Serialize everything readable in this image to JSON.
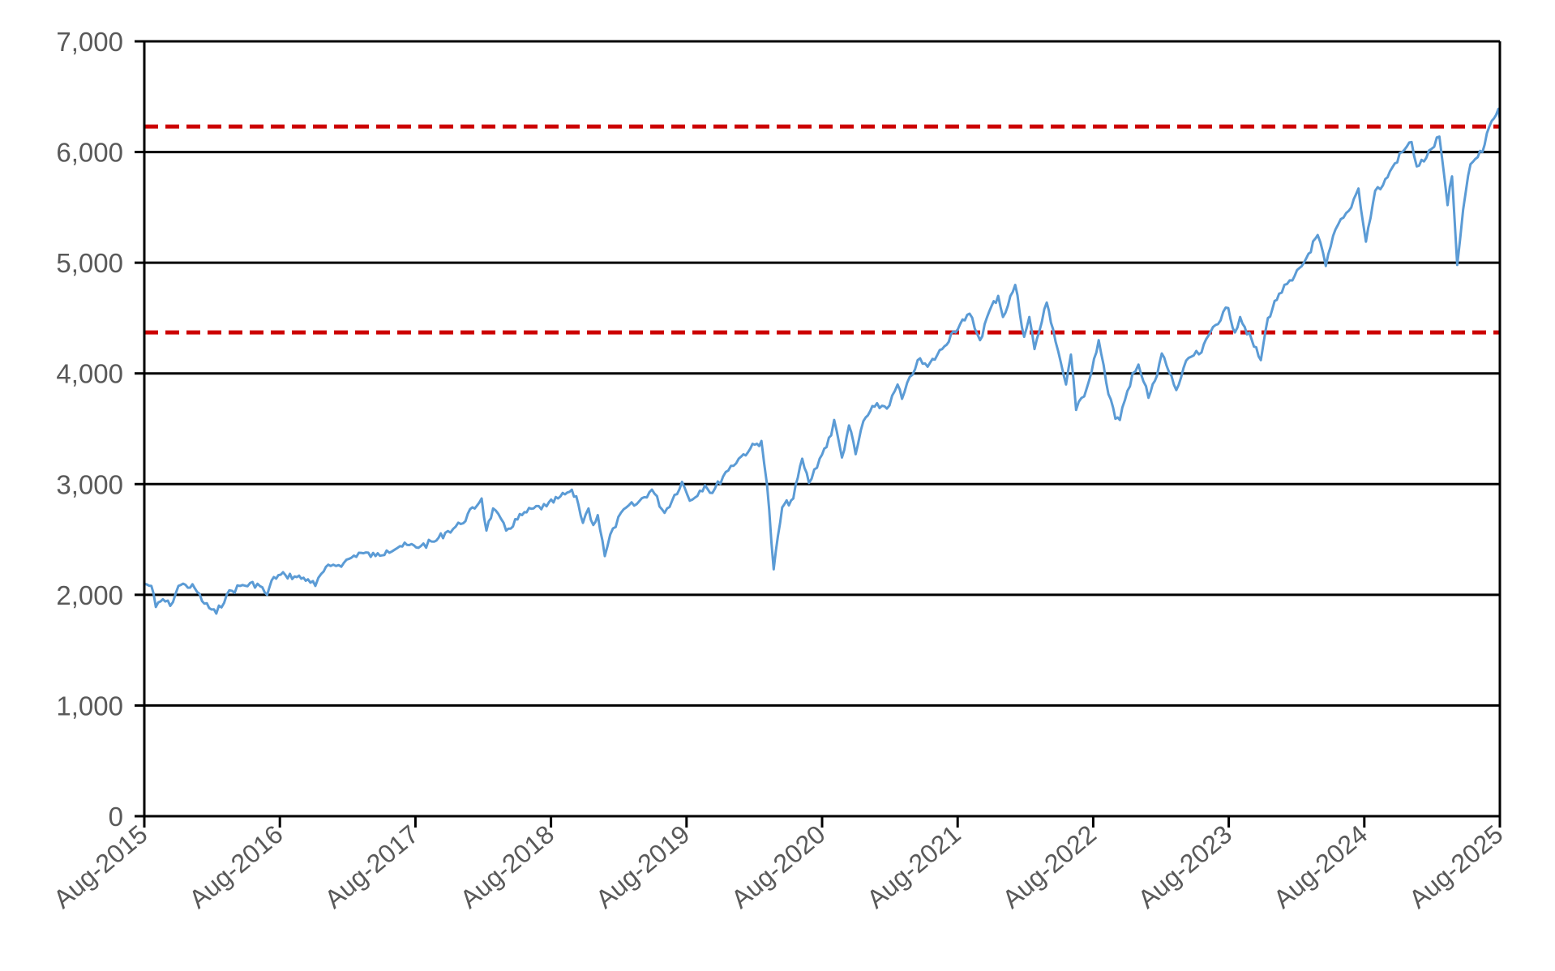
{
  "chart_data": {
    "type": "line",
    "title": "",
    "xlabel": "",
    "ylabel": "",
    "xlim": [
      "2015-08-01",
      "2025-08-01"
    ],
    "ylim": [
      0,
      7000
    ],
    "grid": "horizontal",
    "legend": "none",
    "x_ticks": [
      "Aug-2015",
      "Aug-2016",
      "Aug-2017",
      "Aug-2018",
      "Aug-2019",
      "Aug-2020",
      "Aug-2021",
      "Aug-2022",
      "Aug-2023",
      "Aug-2024",
      "Aug-2025"
    ],
    "y_ticks": [
      "0",
      "1,000",
      "2,000",
      "3,000",
      "4,000",
      "5,000",
      "6,000",
      "7,000"
    ],
    "reference_lines": [
      {
        "y": 6230,
        "color": "#cc0000",
        "style": "dashed"
      },
      {
        "y": 4370,
        "color": "#cc0000",
        "style": "dashed"
      }
    ],
    "series": [
      {
        "color": "#5b9bd5",
        "points": [
          [
            "2015-08-01",
            2100
          ],
          [
            "2015-08-20",
            2080
          ],
          [
            "2015-09-01",
            1890
          ],
          [
            "2015-09-20",
            1960
          ],
          [
            "2015-10-10",
            1900
          ],
          [
            "2015-11-01",
            2080
          ],
          [
            "2015-11-20",
            2090
          ],
          [
            "2015-12-15",
            2060
          ],
          [
            "2016-01-10",
            1920
          ],
          [
            "2016-02-11",
            1830
          ],
          [
            "2016-03-10",
            2000
          ],
          [
            "2016-04-15",
            2080
          ],
          [
            "2016-06-01",
            2100
          ],
          [
            "2016-06-27",
            2000
          ],
          [
            "2016-07-15",
            2160
          ],
          [
            "2016-08-15",
            2180
          ],
          [
            "2016-09-15",
            2160
          ],
          [
            "2016-10-15",
            2140
          ],
          [
            "2016-11-04",
            2080
          ],
          [
            "2016-11-20",
            2190
          ],
          [
            "2016-12-15",
            2260
          ],
          [
            "2017-01-20",
            2290
          ],
          [
            "2017-03-01",
            2380
          ],
          [
            "2017-04-15",
            2350
          ],
          [
            "2017-05-15",
            2400
          ],
          [
            "2017-06-20",
            2440
          ],
          [
            "2017-08-15",
            2440
          ],
          [
            "2017-09-20",
            2480
          ],
          [
            "2017-10-20",
            2560
          ],
          [
            "2017-12-01",
            2640
          ],
          [
            "2018-01-26",
            2870
          ],
          [
            "2018-02-08",
            2580
          ],
          [
            "2018-02-26",
            2780
          ],
          [
            "2018-04-02",
            2580
          ],
          [
            "2018-05-15",
            2720
          ],
          [
            "2018-06-15",
            2780
          ],
          [
            "2018-07-20",
            2800
          ],
          [
            "2018-08-20",
            2870
          ],
          [
            "2018-09-20",
            2930
          ],
          [
            "2018-10-08",
            2890
          ],
          [
            "2018-10-26",
            2650
          ],
          [
            "2018-11-10",
            2780
          ],
          [
            "2018-11-23",
            2630
          ],
          [
            "2018-12-05",
            2720
          ],
          [
            "2018-12-24",
            2350
          ],
          [
            "2019-01-15",
            2600
          ],
          [
            "2019-02-20",
            2790
          ],
          [
            "2019-03-20",
            2820
          ],
          [
            "2019-04-30",
            2950
          ],
          [
            "2019-06-03",
            2740
          ],
          [
            "2019-07-20",
            3020
          ],
          [
            "2019-08-10",
            2850
          ],
          [
            "2019-09-20",
            2990
          ],
          [
            "2019-10-10",
            2920
          ],
          [
            "2019-11-15",
            3110
          ],
          [
            "2019-12-20",
            3230
          ],
          [
            "2020-01-20",
            3320
          ],
          [
            "2020-02-19",
            3390
          ],
          [
            "2020-03-05",
            3000
          ],
          [
            "2020-03-23",
            2230
          ],
          [
            "2020-04-15",
            2790
          ],
          [
            "2020-05-15",
            2870
          ],
          [
            "2020-06-08",
            3230
          ],
          [
            "2020-06-26",
            3010
          ],
          [
            "2020-07-25",
            3230
          ],
          [
            "2020-08-25",
            3440
          ],
          [
            "2020-09-02",
            3580
          ],
          [
            "2020-09-23",
            3240
          ],
          [
            "2020-10-12",
            3530
          ],
          [
            "2020-10-30",
            3270
          ],
          [
            "2020-11-20",
            3570
          ],
          [
            "2020-12-20",
            3700
          ],
          [
            "2021-01-29",
            3710
          ],
          [
            "2021-02-20",
            3900
          ],
          [
            "2021-03-04",
            3770
          ],
          [
            "2021-04-15",
            4120
          ],
          [
            "2021-05-12",
            4060
          ],
          [
            "2021-06-20",
            4220
          ],
          [
            "2021-07-20",
            4380
          ],
          [
            "2021-08-20",
            4480
          ],
          [
            "2021-09-02",
            4540
          ],
          [
            "2021-09-30",
            4300
          ],
          [
            "2021-10-25",
            4560
          ],
          [
            "2021-11-18",
            4700
          ],
          [
            "2021-12-01",
            4510
          ],
          [
            "2022-01-03",
            4800
          ],
          [
            "2022-01-27",
            4330
          ],
          [
            "2022-02-10",
            4510
          ],
          [
            "2022-02-24",
            4220
          ],
          [
            "2022-03-29",
            4640
          ],
          [
            "2022-04-15",
            4400
          ],
          [
            "2022-05-20",
            3900
          ],
          [
            "2022-06-02",
            4170
          ],
          [
            "2022-06-16",
            3670
          ],
          [
            "2022-07-15",
            3870
          ],
          [
            "2022-08-16",
            4300
          ],
          [
            "2022-09-05",
            3920
          ],
          [
            "2022-09-30",
            3590
          ],
          [
            "2022-10-12",
            3580
          ],
          [
            "2022-11-15",
            4000
          ],
          [
            "2022-12-01",
            4080
          ],
          [
            "2022-12-28",
            3780
          ],
          [
            "2023-01-20",
            3980
          ],
          [
            "2023-02-02",
            4180
          ],
          [
            "2023-03-13",
            3850
          ],
          [
            "2023-04-15",
            4140
          ],
          [
            "2023-05-20",
            4190
          ],
          [
            "2023-06-20",
            4420
          ],
          [
            "2023-07-31",
            4590
          ],
          [
            "2023-08-18",
            4370
          ],
          [
            "2023-09-01",
            4510
          ],
          [
            "2023-10-27",
            4120
          ],
          [
            "2023-11-15",
            4500
          ],
          [
            "2023-12-15",
            4720
          ],
          [
            "2024-01-20",
            4840
          ],
          [
            "2024-02-20",
            5000
          ],
          [
            "2024-03-28",
            5250
          ],
          [
            "2024-04-19",
            4970
          ],
          [
            "2024-05-15",
            5300
          ],
          [
            "2024-06-20",
            5470
          ],
          [
            "2024-07-16",
            5670
          ],
          [
            "2024-08-05",
            5190
          ],
          [
            "2024-08-30",
            5650
          ],
          [
            "2024-09-20",
            5700
          ],
          [
            "2024-10-15",
            5860
          ],
          [
            "2024-11-11",
            6000
          ],
          [
            "2024-12-06",
            6090
          ],
          [
            "2024-12-20",
            5870
          ],
          [
            "2025-01-15",
            5950
          ],
          [
            "2025-02-19",
            6140
          ],
          [
            "2025-03-13",
            5520
          ],
          [
            "2025-03-25",
            5780
          ],
          [
            "2025-04-08",
            4980
          ],
          [
            "2025-04-24",
            5480
          ],
          [
            "2025-05-14",
            5890
          ],
          [
            "2025-06-15",
            6000
          ],
          [
            "2025-06-27",
            6170
          ],
          [
            "2025-07-10",
            6280
          ],
          [
            "2025-07-28",
            6390
          ],
          [
            "2025-08-01",
            6300
          ]
        ]
      }
    ]
  }
}
